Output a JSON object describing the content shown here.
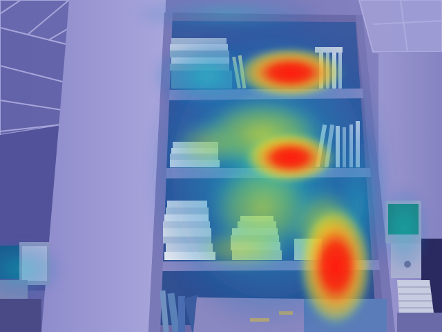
{
  "image": {
    "overlay": "attention-heatmap",
    "colormap": [
      "#1040c0",
      "#10c8d8",
      "#e8e020",
      "#ff2010"
    ],
    "objects": [
      "ceiling-tiles",
      "wall-pillar",
      "bookshelf",
      "book-stacks",
      "computer-monitor",
      "crt-monitor-right",
      "keyboard"
    ]
  }
}
